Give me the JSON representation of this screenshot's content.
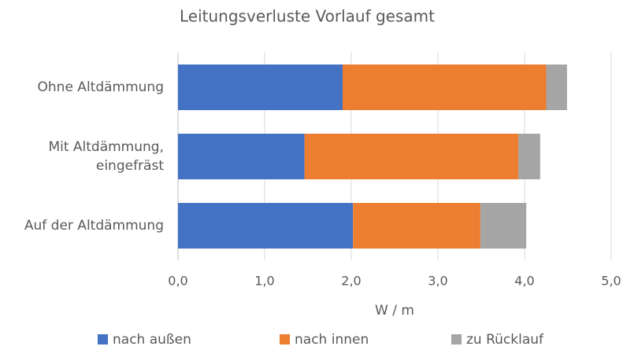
{
  "chart_data": {
    "type": "stacked-bar-horizontal",
    "title": "Leitungsverluste Vorlauf gesamt",
    "categories": [
      "Ohne Altdämmung",
      "Mit Altdämmung, eingefräst",
      "Auf der Altdämmung"
    ],
    "series": [
      {
        "name": "nach außen",
        "color": "#4472c4",
        "values": [
          1.9,
          1.46,
          2.02
        ]
      },
      {
        "name": "nach innen",
        "color": "#ed7d31",
        "values": [
          2.35,
          2.47,
          1.47
        ]
      },
      {
        "name": "zu Rücklauf",
        "color": "#a5a5a5",
        "values": [
          0.24,
          0.25,
          0.53
        ]
      }
    ],
    "xlabel": "W / m",
    "xlim": [
      0,
      5
    ],
    "xticks": [
      {
        "value": 0,
        "label": "0,0"
      },
      {
        "value": 1,
        "label": "1,0"
      },
      {
        "value": 2,
        "label": "2,0"
      },
      {
        "value": 3,
        "label": "3,0"
      },
      {
        "value": 4,
        "label": "4,0"
      },
      {
        "value": 5,
        "label": "5,0"
      }
    ],
    "grid": true,
    "legend": "bottom"
  }
}
